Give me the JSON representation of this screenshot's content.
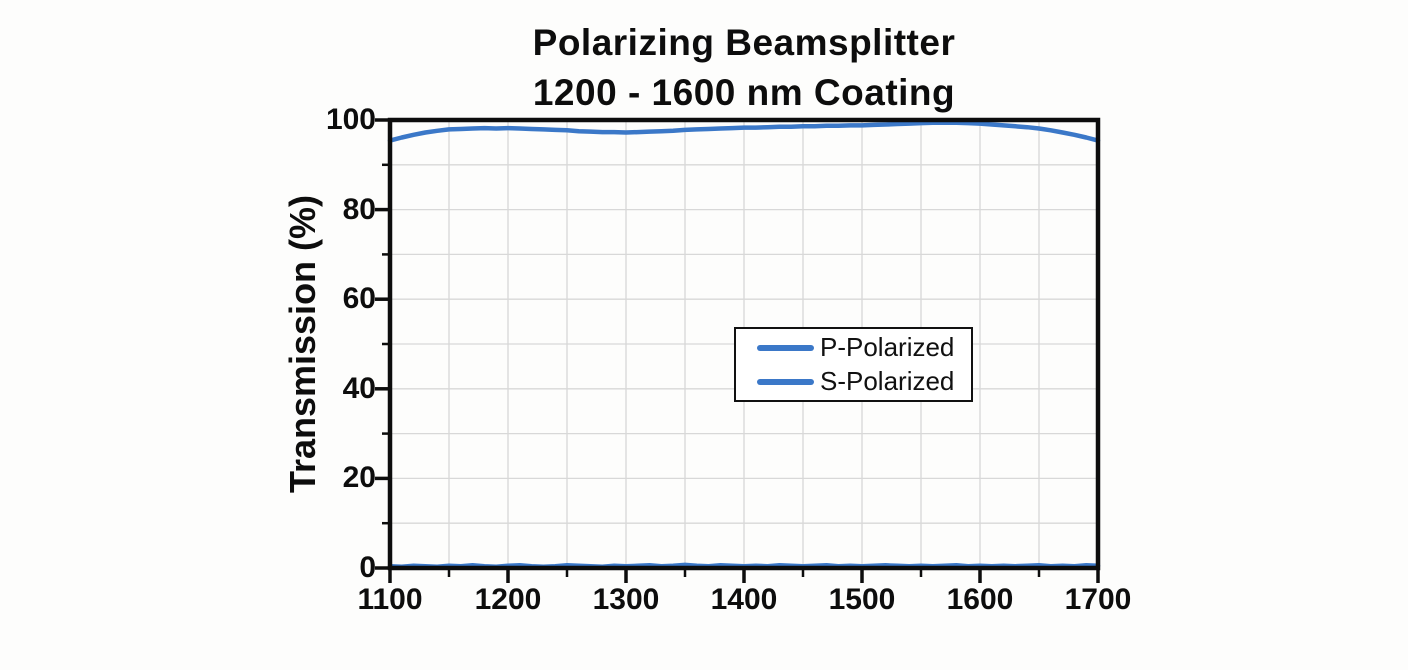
{
  "title": {
    "line1": "Polarizing Beamsplitter",
    "line2": "1200 - 1600 nm Coating"
  },
  "colors": {
    "line_blue": "#3b78c8",
    "grid": "#d8d8d8",
    "frame": "#0d0d0d",
    "text": "#0d0d0d",
    "background": "#fdfdfc",
    "legend_background": "#ffffff"
  },
  "axes": {
    "y": {
      "label": "Transmission (%)",
      "min": 0,
      "max": 100,
      "major_ticks": [
        0,
        20,
        40,
        60,
        80,
        100
      ],
      "minor_ticks": [
        10,
        30,
        50,
        70,
        90
      ],
      "gridlines": [
        10,
        20,
        30,
        40,
        50,
        60,
        70,
        80,
        90
      ]
    },
    "x": {
      "label": "",
      "min": 1100,
      "max": 1700,
      "major_ticks": [
        1100,
        1200,
        1300,
        1400,
        1500,
        1600,
        1700
      ],
      "minor_ticks": [
        1150,
        1250,
        1350,
        1450,
        1550,
        1650
      ],
      "gridlines": [
        1150,
        1200,
        1250,
        1300,
        1350,
        1400,
        1450,
        1500,
        1550,
        1600,
        1650
      ]
    }
  },
  "legend": {
    "entries": [
      {
        "label": "P-Polarized",
        "color": "#3b78c8"
      },
      {
        "label": "S-Polarized",
        "color": "#3b78c8"
      }
    ]
  },
  "chart_data": {
    "type": "line",
    "title": "Polarizing Beamsplitter 1200 - 1600 nm Coating",
    "xlabel": "",
    "ylabel": "Transmission (%)",
    "xlim": [
      1100,
      1700
    ],
    "ylim": [
      0,
      100
    ],
    "grid": true,
    "legend_position": "center-right-inside",
    "x": [
      1100,
      1110,
      1120,
      1130,
      1140,
      1150,
      1160,
      1170,
      1180,
      1190,
      1200,
      1210,
      1220,
      1230,
      1240,
      1250,
      1260,
      1270,
      1280,
      1290,
      1300,
      1310,
      1320,
      1330,
      1340,
      1350,
      1360,
      1370,
      1380,
      1390,
      1400,
      1410,
      1420,
      1430,
      1440,
      1450,
      1460,
      1470,
      1480,
      1490,
      1500,
      1510,
      1520,
      1530,
      1540,
      1550,
      1560,
      1570,
      1580,
      1590,
      1600,
      1610,
      1620,
      1630,
      1640,
      1650,
      1660,
      1670,
      1680,
      1690,
      1700
    ],
    "series": [
      {
        "name": "P-Polarized",
        "color": "#3b78c8",
        "values": [
          95.4,
          96.1,
          96.7,
          97.2,
          97.6,
          97.9,
          98.0,
          98.1,
          98.2,
          98.1,
          98.2,
          98.1,
          98.0,
          97.9,
          97.8,
          97.7,
          97.5,
          97.4,
          97.3,
          97.3,
          97.2,
          97.3,
          97.4,
          97.5,
          97.6,
          97.8,
          97.9,
          98.0,
          98.1,
          98.2,
          98.3,
          98.3,
          98.4,
          98.5,
          98.5,
          98.6,
          98.6,
          98.7,
          98.7,
          98.8,
          98.8,
          98.9,
          99.0,
          99.1,
          99.2,
          99.3,
          99.4,
          99.4,
          99.4,
          99.3,
          99.2,
          99.0,
          98.8,
          98.6,
          98.4,
          98.1,
          97.7,
          97.2,
          96.7,
          96.1,
          95.4
        ]
      },
      {
        "name": "S-Polarized",
        "color": "#3b78c8",
        "values": [
          0.4,
          0.3,
          0.5,
          0.4,
          0.3,
          0.5,
          0.4,
          0.6,
          0.4,
          0.3,
          0.5,
          0.6,
          0.4,
          0.3,
          0.4,
          0.6,
          0.5,
          0.4,
          0.3,
          0.5,
          0.4,
          0.5,
          0.6,
          0.4,
          0.5,
          0.7,
          0.5,
          0.4,
          0.6,
          0.5,
          0.4,
          0.5,
          0.4,
          0.6,
          0.5,
          0.4,
          0.5,
          0.6,
          0.4,
          0.5,
          0.4,
          0.5,
          0.6,
          0.5,
          0.4,
          0.5,
          0.4,
          0.5,
          0.6,
          0.4,
          0.5,
          0.4,
          0.5,
          0.4,
          0.5,
          0.6,
          0.4,
          0.5,
          0.4,
          0.6,
          0.5
        ]
      }
    ]
  }
}
